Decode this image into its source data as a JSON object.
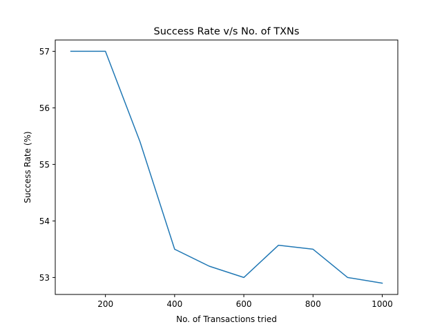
{
  "chart_data": {
    "type": "line",
    "title": "Success Rate v/s No. of TXNs",
    "xlabel": "No. of Transactions tried",
    "ylabel": "Success Rate (%)",
    "xlim": [
      55,
      1045
    ],
    "ylim": [
      52.7,
      57.2
    ],
    "xticks": [
      200,
      400,
      600,
      800,
      1000
    ],
    "yticks": [
      53,
      54,
      55,
      56,
      57
    ],
    "grid": false,
    "series": [
      {
        "color": "#1f77b4",
        "x": [
          100,
          200,
          300,
          400,
          500,
          600,
          700,
          800,
          900,
          1000
        ],
        "y": [
          57.0,
          57.0,
          55.4,
          53.5,
          53.2,
          53.0,
          53.57,
          53.5,
          53.0,
          52.9
        ]
      }
    ]
  }
}
